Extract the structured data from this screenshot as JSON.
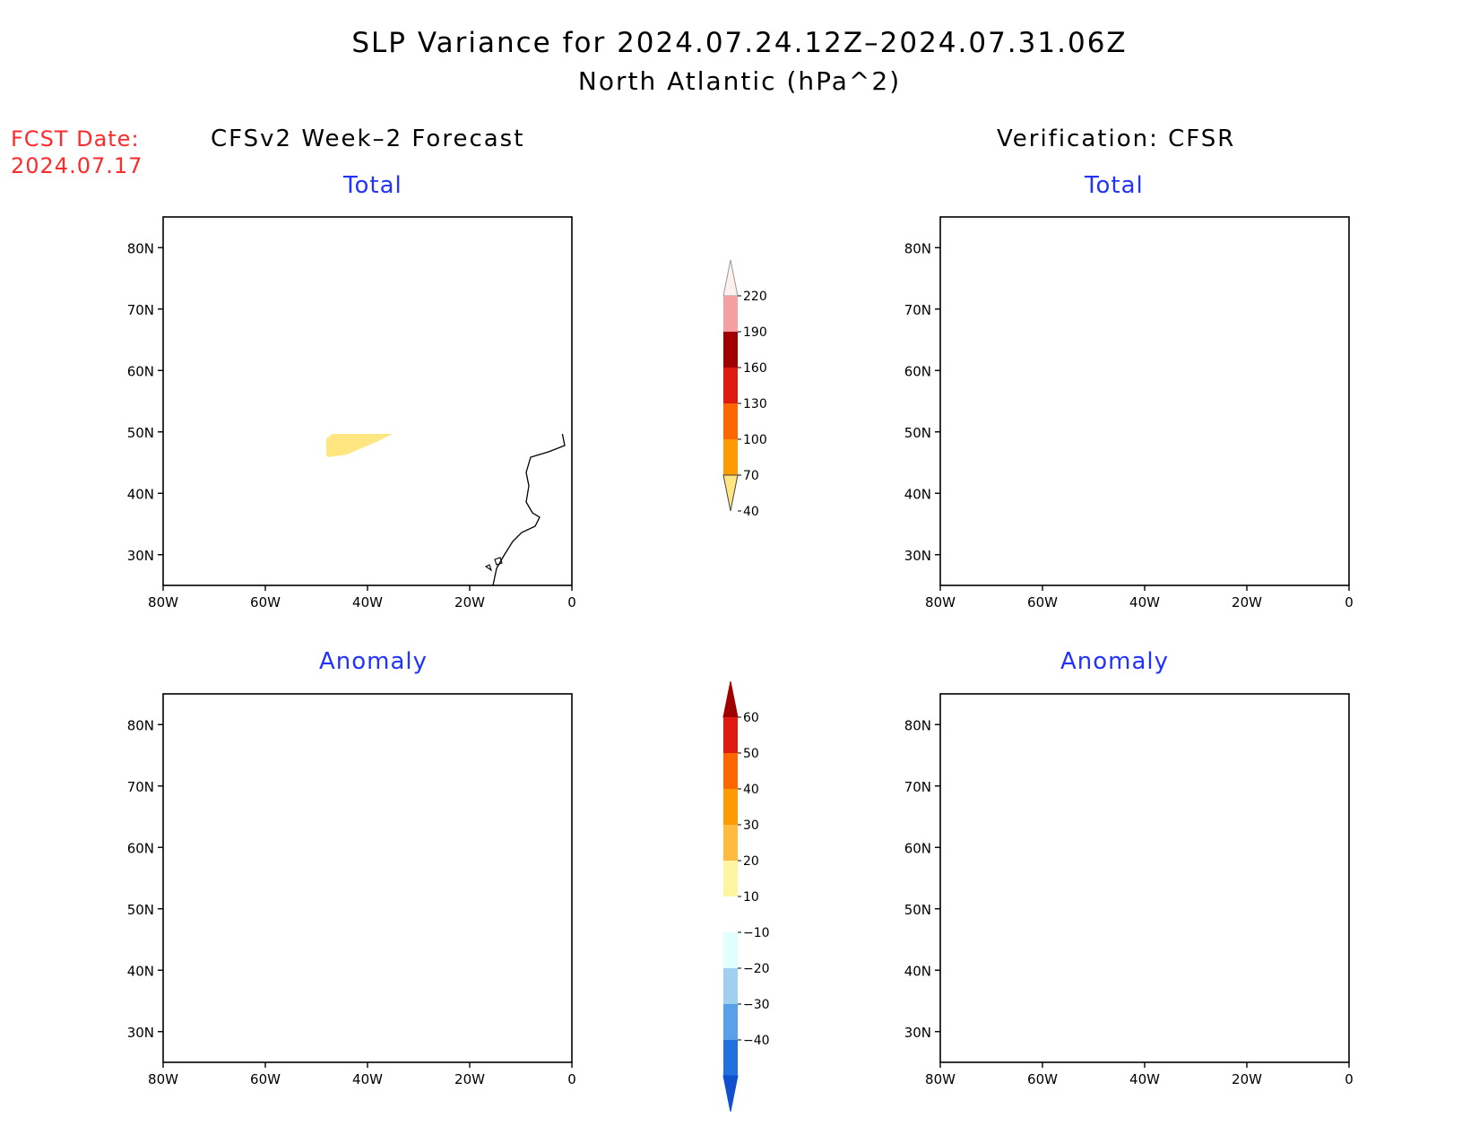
{
  "title": "SLP Variance for 2024.07.24.12Z–2024.07.31.06Z",
  "subtitle": "North Atlantic (hPa^2)",
  "forecast_date_label": "FCST Date:",
  "forecast_date": "2024.07.17",
  "left_column_title": "CFSv2 Week–2 Forecast",
  "right_column_title": "Verification: CFSR",
  "panels": {
    "top_left": "Total",
    "top_right": "Total",
    "bottom_left": "Anomaly",
    "bottom_right": "Anomaly"
  },
  "axes": {
    "x_ticks": [
      "80W",
      "60W",
      "40W",
      "20W",
      "0"
    ],
    "y_ticks": [
      "80N",
      "70N",
      "60N",
      "50N",
      "40N",
      "30N"
    ],
    "lon_range": [
      -80,
      0
    ],
    "lat_range": [
      25,
      85
    ]
  },
  "total_colorbar": {
    "labels": [
      "220",
      "190",
      "160",
      "130",
      "100",
      "70",
      "40"
    ],
    "colors": [
      "#fff0f0",
      "#f4a0a0",
      "#a00000",
      "#e01a10",
      "#ff6600",
      "#ff9a00",
      "#ffe680"
    ]
  },
  "anomaly_colorbar": {
    "labels": [
      "60",
      "50",
      "40",
      "30",
      "20",
      "10",
      "−10",
      "−20",
      "−30",
      "−40"
    ],
    "colors": [
      "#a00000",
      "#e01a10",
      "#ff6600",
      "#ff9a00",
      "#ffbb40",
      "#fff4a0",
      "#ffffff",
      "#e0ffff",
      "#a0d0f0",
      "#5aa0e8",
      "#2070e0",
      "#1050d0"
    ]
  },
  "colors": {
    "title_red": "#ff2a2a",
    "subtitle_blue": "#2233ff"
  }
}
